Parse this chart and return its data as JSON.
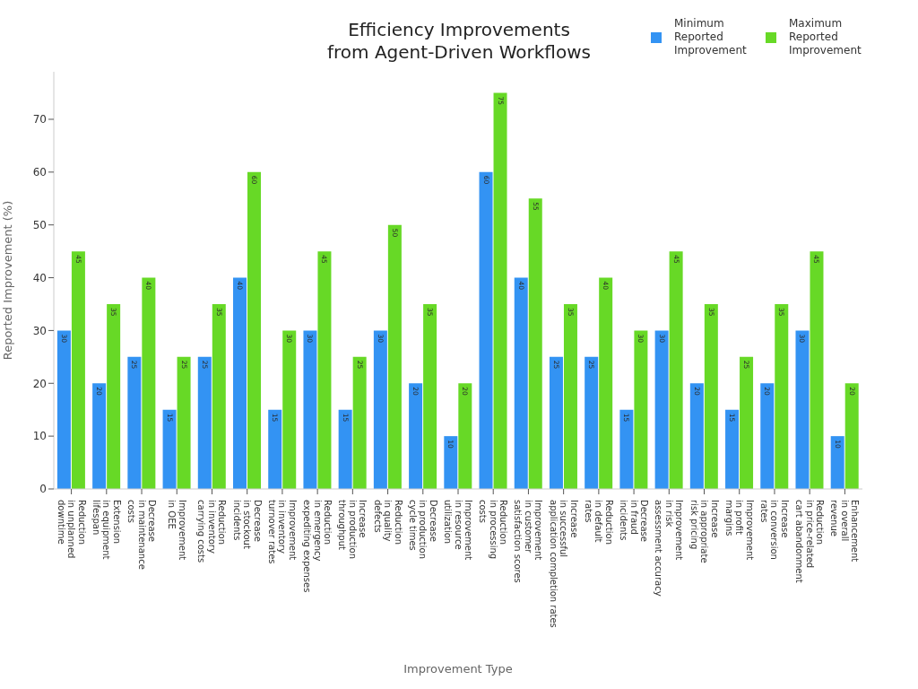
{
  "chart_data": {
    "type": "bar",
    "title": "Efficiency Improvements\nfrom Agent-Driven Workflows",
    "xlabel": "Improvement Type",
    "ylabel": "Reported Improvement (%)",
    "categories": [
      "Reduction in unplanned downtime",
      "Extension in equipment lifespan",
      "Decrease in maintenance costs",
      "Improvement in OEE",
      "Reduction in inventory carrying costs",
      "Decrease in stockout incidents",
      "Improvement in inventory turnover rates",
      "Reduction in emergency expediting expenses",
      "Increase in production throughput",
      "Reduction in quality defects",
      "Decrease in production cycle times",
      "Improvement in resource utilization",
      "Reduction in processing costs",
      "Improvement in customer satisfaction scores",
      "Increase in successful application completion rates",
      "Reduction in default rates",
      "Decrease in fraud incidents",
      "Improvement in risk assessment accuracy",
      "Increase in appropriate risk pricing",
      "Improvement in profit margins",
      "Increase in conversion rates",
      "Reduction in price-related cart abandonment",
      "Enhancement in overall revenue"
    ],
    "series": [
      {
        "name": "Minimum Reported Improvement",
        "color": "#3393f3",
        "values": [
          30,
          20,
          25,
          15,
          25,
          40,
          15,
          30,
          15,
          30,
          20,
          10,
          60,
          40,
          25,
          25,
          15,
          30,
          20,
          15,
          20,
          30,
          10
        ]
      },
      {
        "name": "Maximum Reported Improvement",
        "color": "#67d926",
        "values": [
          45,
          35,
          40,
          25,
          35,
          60,
          30,
          45,
          25,
          50,
          35,
          20,
          75,
          55,
          35,
          40,
          30,
          45,
          35,
          25,
          35,
          45,
          20
        ]
      }
    ],
    "ylim": [
      0,
      79
    ],
    "yticks": [
      0,
      10,
      20,
      30,
      40,
      50,
      60,
      70
    ],
    "legend": "top right",
    "data_labels": true
  }
}
